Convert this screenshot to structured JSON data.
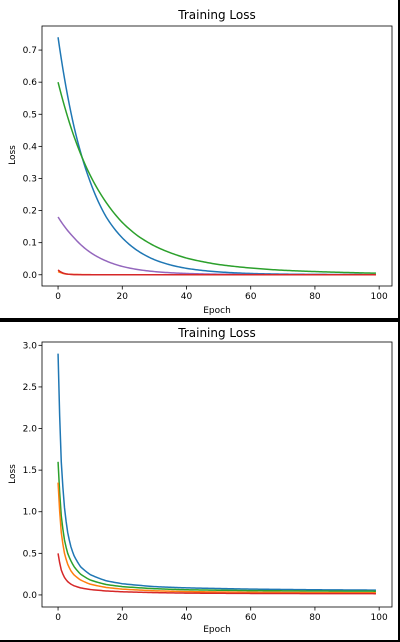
{
  "colors": {
    "blue": "#1f77b4",
    "orange": "#ff7f0e",
    "green": "#2ca02c",
    "red": "#d62728",
    "purple": "#9467bd"
  },
  "chart_data": [
    {
      "type": "line",
      "title": "Training Loss",
      "xlabel": "Epoch",
      "ylabel": "Loss",
      "xlim": [
        -5,
        104
      ],
      "ylim": [
        -0.035,
        0.775
      ],
      "xticks": [
        0,
        20,
        40,
        60,
        80,
        100
      ],
      "yticks": [
        0.0,
        0.1,
        0.2,
        0.3,
        0.4,
        0.5,
        0.6,
        0.7
      ],
      "grid": false,
      "epochs": [
        0,
        99
      ],
      "series": [
        {
          "color": "blue",
          "points": [
            [
              0,
              0.74
            ],
            [
              5,
              0.46
            ],
            [
              10,
              0.29
            ],
            [
              15,
              0.18
            ],
            [
              20,
              0.115
            ],
            [
              30,
              0.047
            ],
            [
              40,
              0.02
            ],
            [
              50,
              0.009
            ],
            [
              60,
              0.004
            ],
            [
              70,
              0.002
            ],
            [
              80,
              0.0012
            ],
            [
              90,
              0.0008
            ],
            [
              99,
              0.0005
            ]
          ]
        },
        {
          "color": "green",
          "points": [
            [
              0,
              0.6
            ],
            [
              5,
              0.43
            ],
            [
              10,
              0.31
            ],
            [
              15,
              0.225
            ],
            [
              20,
              0.163
            ],
            [
              25,
              0.12
            ],
            [
              30,
              0.09
            ],
            [
              40,
              0.052
            ],
            [
              50,
              0.032
            ],
            [
              60,
              0.021
            ],
            [
              70,
              0.014
            ],
            [
              80,
              0.01
            ],
            [
              90,
              0.007
            ],
            [
              99,
              0.005
            ]
          ]
        },
        {
          "color": "purple",
          "points": [
            [
              0,
              0.18
            ],
            [
              5,
              0.115
            ],
            [
              10,
              0.07
            ],
            [
              15,
              0.043
            ],
            [
              20,
              0.026
            ],
            [
              25,
              0.016
            ],
            [
              30,
              0.01
            ],
            [
              40,
              0.004
            ],
            [
              50,
              0.0017
            ],
            [
              60,
              0.0008
            ],
            [
              80,
              0.0003
            ],
            [
              99,
              0.0001
            ]
          ]
        },
        {
          "color": "orange",
          "points": [
            [
              0,
              0.01
            ],
            [
              1,
              0.006
            ],
            [
              2,
              0.003
            ],
            [
              4,
              0.0012
            ],
            [
              8,
              0.0004
            ],
            [
              15,
              0.0001
            ],
            [
              99,
              0.0
            ]
          ]
        },
        {
          "color": "red",
          "points": [
            [
              0,
              0.015
            ],
            [
              1,
              0.008
            ],
            [
              2,
              0.004
            ],
            [
              3,
              0.002
            ],
            [
              5,
              0.0006
            ],
            [
              10,
              0.0001
            ],
            [
              99,
              0.0
            ]
          ]
        }
      ]
    },
    {
      "type": "line",
      "title": "Training Loss",
      "xlabel": "Epoch",
      "ylabel": "Loss",
      "xlim": [
        -5,
        104
      ],
      "ylim": [
        -0.145,
        3.04
      ],
      "xticks": [
        0,
        20,
        40,
        60,
        80,
        100
      ],
      "yticks": [
        0.0,
        0.5,
        1.0,
        1.5,
        2.0,
        2.5,
        3.0
      ],
      "grid": false,
      "epochs": [
        0,
        99
      ],
      "series": [
        {
          "color": "blue",
          "points": [
            [
              0,
              2.9
            ],
            [
              1,
              1.6
            ],
            [
              2,
              1.05
            ],
            [
              3,
              0.75
            ],
            [
              4,
              0.58
            ],
            [
              5,
              0.47
            ],
            [
              7,
              0.34
            ],
            [
              10,
              0.245
            ],
            [
              15,
              0.17
            ],
            [
              20,
              0.135
            ],
            [
              30,
              0.1
            ],
            [
              40,
              0.085
            ],
            [
              60,
              0.07
            ],
            [
              80,
              0.062
            ],
            [
              99,
              0.058
            ]
          ]
        },
        {
          "color": "green",
          "points": [
            [
              0,
              1.6
            ],
            [
              1,
              0.95
            ],
            [
              2,
              0.66
            ],
            [
              3,
              0.5
            ],
            [
              4,
              0.41
            ],
            [
              5,
              0.34
            ],
            [
              7,
              0.25
            ],
            [
              10,
              0.18
            ],
            [
              15,
              0.125
            ],
            [
              20,
              0.1
            ],
            [
              30,
              0.075
            ],
            [
              40,
              0.062
            ],
            [
              60,
              0.052
            ],
            [
              80,
              0.047
            ],
            [
              99,
              0.045
            ]
          ]
        },
        {
          "color": "orange",
          "points": [
            [
              0,
              1.35
            ],
            [
              1,
              0.75
            ],
            [
              2,
              0.5
            ],
            [
              3,
              0.37
            ],
            [
              4,
              0.29
            ],
            [
              5,
              0.24
            ],
            [
              7,
              0.18
            ],
            [
              10,
              0.13
            ],
            [
              15,
              0.09
            ],
            [
              20,
              0.07
            ],
            [
              30,
              0.05
            ],
            [
              40,
              0.04
            ],
            [
              60,
              0.032
            ],
            [
              80,
              0.028
            ],
            [
              99,
              0.026
            ]
          ]
        },
        {
          "color": "red",
          "points": [
            [
              0,
              0.5
            ],
            [
              1,
              0.3
            ],
            [
              2,
              0.21
            ],
            [
              3,
              0.16
            ],
            [
              4,
              0.13
            ],
            [
              5,
              0.11
            ],
            [
              7,
              0.085
            ],
            [
              10,
              0.065
            ],
            [
              15,
              0.048
            ],
            [
              20,
              0.038
            ],
            [
              30,
              0.028
            ],
            [
              40,
              0.022
            ],
            [
              60,
              0.018
            ],
            [
              80,
              0.016
            ],
            [
              99,
              0.015
            ]
          ]
        }
      ]
    }
  ]
}
